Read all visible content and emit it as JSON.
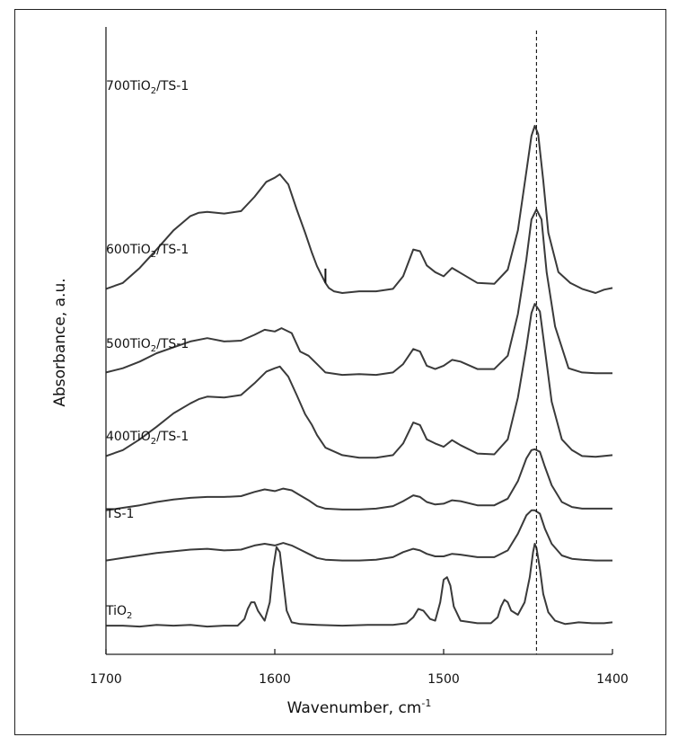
{
  "chart_data": {
    "type": "line",
    "xlabel": "Wavenumber, cm",
    "xlabel_sup": "-1",
    "ylabel": "Absorbance, a.u.",
    "xlim": [
      1700,
      1400
    ],
    "x_reversed": true,
    "xticks": [
      1700,
      1600,
      1500,
      1400
    ],
    "yaxis_ticks": false,
    "reference_line_x": 1445,
    "reference_line_style": "dashed",
    "series": [
      {
        "name": "700TiO₂/TS-1",
        "name_base": "700TiO",
        "name_sub": "2",
        "name_tail": "/TS-1",
        "baseline": 4.0,
        "marker_x": 1570,
        "x": [
          1700,
          1690,
          1680,
          1670,
          1660,
          1650,
          1645,
          1640,
          1630,
          1620,
          1612,
          1605,
          1600,
          1597,
          1592,
          1587,
          1582,
          1578,
          1575,
          1570,
          1568,
          1565,
          1560,
          1550,
          1540,
          1530,
          1524,
          1518,
          1514,
          1510,
          1505,
          1500,
          1495,
          1490,
          1480,
          1470,
          1462,
          1456,
          1451,
          1448,
          1446,
          1444,
          1441,
          1438,
          1432,
          1425,
          1418,
          1410,
          1405,
          1400
        ],
        "y": [
          0.05,
          0.12,
          0.3,
          0.52,
          0.75,
          0.92,
          0.96,
          0.97,
          0.95,
          0.98,
          1.15,
          1.33,
          1.38,
          1.42,
          1.3,
          1.0,
          0.72,
          0.48,
          0.32,
          0.12,
          0.06,
          0.02,
          0.0,
          0.02,
          0.02,
          0.05,
          0.2,
          0.52,
          0.5,
          0.33,
          0.25,
          0.2,
          0.3,
          0.24,
          0.12,
          0.11,
          0.28,
          0.75,
          1.45,
          1.88,
          2.0,
          1.9,
          1.35,
          0.72,
          0.25,
          0.12,
          0.05,
          0.0,
          0.04,
          0.06
        ]
      },
      {
        "name": "600TiO₂/TS-1",
        "name_base": "600TiO",
        "name_sub": "2",
        "name_tail": "/TS-1",
        "baseline": 3.0,
        "x": [
          1700,
          1690,
          1680,
          1670,
          1660,
          1650,
          1640,
          1630,
          1620,
          1612,
          1606,
          1600,
          1596,
          1590,
          1585,
          1580,
          1575,
          1570,
          1560,
          1550,
          1540,
          1530,
          1524,
          1518,
          1514,
          1510,
          1505,
          1500,
          1495,
          1490,
          1480,
          1470,
          1462,
          1456,
          1451,
          1448,
          1445,
          1442,
          1439,
          1434,
          1426,
          1418,
          1410,
          1400
        ],
        "y": [
          0.05,
          0.1,
          0.18,
          0.28,
          0.35,
          0.42,
          0.46,
          0.42,
          0.43,
          0.5,
          0.56,
          0.54,
          0.58,
          0.52,
          0.3,
          0.25,
          0.15,
          0.05,
          0.02,
          0.03,
          0.02,
          0.05,
          0.15,
          0.33,
          0.3,
          0.13,
          0.09,
          0.13,
          0.2,
          0.18,
          0.09,
          0.09,
          0.25,
          0.75,
          1.4,
          1.88,
          2.0,
          1.88,
          1.25,
          0.6,
          0.1,
          0.05,
          0.04,
          0.04
        ]
      },
      {
        "name": "500TiO₂/TS-1",
        "name_base": "500TiO",
        "name_sub": "2",
        "name_tail": "/TS-1",
        "baseline": 2.0,
        "x": [
          1700,
          1690,
          1680,
          1670,
          1660,
          1650,
          1645,
          1640,
          1630,
          1620,
          1612,
          1605,
          1600,
          1597,
          1592,
          1587,
          1582,
          1578,
          1575,
          1570,
          1560,
          1550,
          1540,
          1530,
          1524,
          1518,
          1514,
          1510,
          1505,
          1500,
          1495,
          1490,
          1480,
          1470,
          1462,
          1456,
          1451,
          1448,
          1446,
          1443,
          1440,
          1436,
          1430,
          1424,
          1418,
          1410,
          1400
        ],
        "y": [
          0.05,
          0.12,
          0.25,
          0.4,
          0.56,
          0.68,
          0.73,
          0.76,
          0.75,
          0.78,
          0.92,
          1.06,
          1.1,
          1.12,
          1.0,
          0.78,
          0.55,
          0.42,
          0.3,
          0.15,
          0.06,
          0.03,
          0.03,
          0.06,
          0.2,
          0.45,
          0.42,
          0.25,
          0.2,
          0.16,
          0.24,
          0.18,
          0.08,
          0.07,
          0.25,
          0.75,
          1.35,
          1.76,
          1.87,
          1.78,
          1.32,
          0.7,
          0.25,
          0.12,
          0.05,
          0.04,
          0.06
        ]
      },
      {
        "name": "400TiO₂/TS-1",
        "name_base": "400TiO",
        "name_sub": "2",
        "name_tail": "/TS-1",
        "baseline": 1.4,
        "x": [
          1700,
          1690,
          1680,
          1670,
          1660,
          1650,
          1640,
          1630,
          1620,
          1612,
          1606,
          1600,
          1595,
          1590,
          1585,
          1580,
          1575,
          1570,
          1560,
          1550,
          1540,
          1530,
          1524,
          1518,
          1514,
          1510,
          1505,
          1500,
          1495,
          1490,
          1480,
          1470,
          1462,
          1456,
          1451,
          1448,
          1446,
          1443,
          1440,
          1436,
          1430,
          1424,
          1418,
          1410,
          1400
        ],
        "y": [
          0.0,
          0.03,
          0.06,
          0.1,
          0.13,
          0.15,
          0.16,
          0.16,
          0.17,
          0.22,
          0.25,
          0.23,
          0.26,
          0.24,
          0.18,
          0.12,
          0.05,
          0.02,
          0.01,
          0.01,
          0.02,
          0.05,
          0.11,
          0.18,
          0.16,
          0.1,
          0.07,
          0.08,
          0.12,
          0.11,
          0.06,
          0.06,
          0.14,
          0.35,
          0.62,
          0.72,
          0.73,
          0.7,
          0.52,
          0.3,
          0.1,
          0.04,
          0.02,
          0.02,
          0.02
        ]
      },
      {
        "name": "TS-1",
        "baseline": 0.8,
        "x": [
          1700,
          1690,
          1680,
          1670,
          1660,
          1650,
          1640,
          1630,
          1620,
          1612,
          1606,
          1600,
          1595,
          1590,
          1585,
          1580,
          1575,
          1570,
          1560,
          1550,
          1540,
          1530,
          1524,
          1518,
          1514,
          1510,
          1505,
          1500,
          1495,
          1490,
          1480,
          1470,
          1462,
          1456,
          1451,
          1448,
          1446,
          1443,
          1440,
          1436,
          1430,
          1424,
          1418,
          1410,
          1400
        ],
        "y": [
          0.0,
          0.03,
          0.06,
          0.09,
          0.11,
          0.13,
          0.14,
          0.12,
          0.13,
          0.18,
          0.2,
          0.18,
          0.21,
          0.18,
          0.13,
          0.08,
          0.03,
          0.01,
          0.0,
          0.0,
          0.01,
          0.04,
          0.1,
          0.14,
          0.12,
          0.08,
          0.05,
          0.05,
          0.08,
          0.07,
          0.04,
          0.04,
          0.12,
          0.32,
          0.54,
          0.6,
          0.6,
          0.56,
          0.38,
          0.2,
          0.06,
          0.02,
          0.01,
          0.0,
          0.0
        ]
      },
      {
        "name": "TiO₂",
        "name_base": "TiO",
        "name_sub": "2",
        "name_tail": "",
        "baseline": 0.0,
        "x": [
          1700,
          1690,
          1680,
          1670,
          1660,
          1650,
          1640,
          1630,
          1622,
          1618,
          1616,
          1614,
          1612,
          1610,
          1606,
          1603,
          1601,
          1599,
          1597,
          1595,
          1593,
          1590,
          1585,
          1575,
          1560,
          1545,
          1530,
          1522,
          1518,
          1515,
          1512,
          1508,
          1505,
          1502,
          1500,
          1498,
          1496,
          1494,
          1490,
          1480,
          1472,
          1468,
          1466,
          1464,
          1462,
          1460,
          1456,
          1452,
          1449,
          1447,
          1446,
          1445,
          1443,
          1441,
          1438,
          1434,
          1428,
          1420,
          1412,
          1405,
          1400
        ],
        "y": [
          0.02,
          0.02,
          0.01,
          0.03,
          0.02,
          0.03,
          0.01,
          0.02,
          0.02,
          0.1,
          0.22,
          0.3,
          0.3,
          0.2,
          0.08,
          0.3,
          0.7,
          0.96,
          0.9,
          0.55,
          0.2,
          0.06,
          0.04,
          0.03,
          0.02,
          0.03,
          0.03,
          0.05,
          0.12,
          0.22,
          0.2,
          0.1,
          0.08,
          0.3,
          0.57,
          0.6,
          0.5,
          0.25,
          0.08,
          0.05,
          0.05,
          0.12,
          0.25,
          0.33,
          0.3,
          0.2,
          0.15,
          0.3,
          0.6,
          0.9,
          1.0,
          0.95,
          0.7,
          0.4,
          0.18,
          0.08,
          0.04,
          0.06,
          0.05,
          0.05,
          0.06
        ]
      }
    ]
  }
}
